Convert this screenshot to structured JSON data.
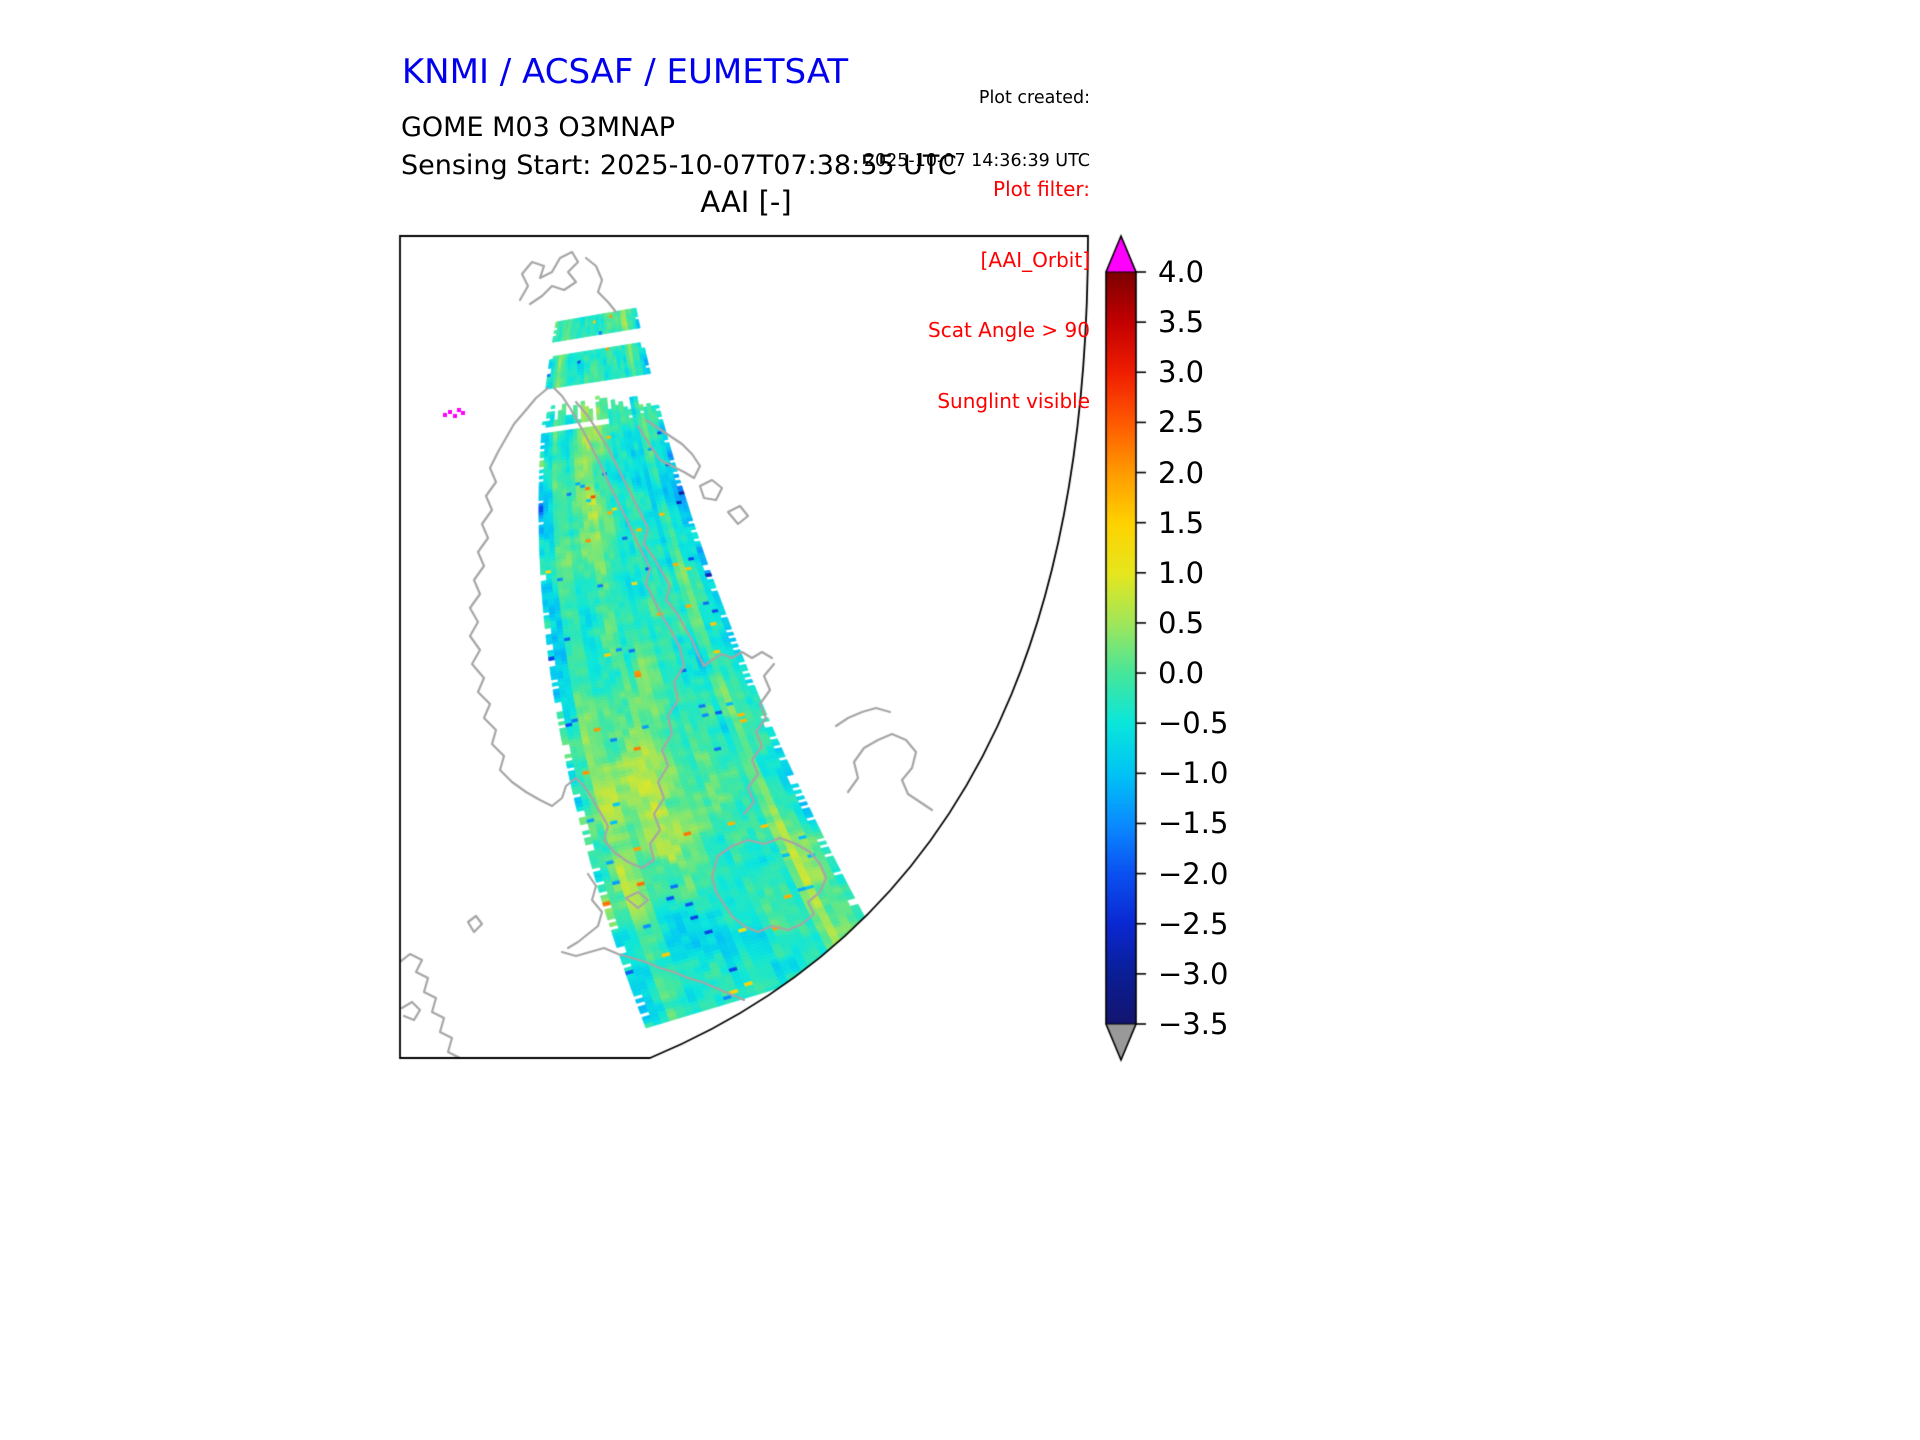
{
  "header": {
    "org_title": "KNMI / ACSAF / EUMETSAT",
    "created_label": "Plot created:",
    "created_timestamp": "2025-10-07 14:36:39 UTC"
  },
  "plot": {
    "instrument_title": "GOME M03 O3MNAP",
    "sensing_line": "Sensing Start: 2025-10-07T07:38:55 UTC",
    "axes_title": "AAI [-]"
  },
  "filter": {
    "label": "Plot filter:",
    "lines": [
      "[AAI_Orbit]",
      "Scat Angle > 90",
      "Sunglint visible"
    ]
  },
  "colors": {
    "title_blue": "#0000ee",
    "filter_red": "#ff0000",
    "coastline_gray": "#a6a6a6",
    "frame_black": "#000000"
  },
  "colorbar": {
    "tick_labels": [
      "4.0",
      "3.5",
      "3.0",
      "2.5",
      "2.0",
      "1.5",
      "1.0",
      "0.5",
      "0.0",
      "−0.5",
      "−1.0",
      "−1.5",
      "−2.0",
      "−2.5",
      "−3.0",
      "−3.5"
    ],
    "over_color": "#ff00ff",
    "under_color": "#999999",
    "stops": [
      {
        "v": -3.5,
        "c": "#14146e"
      },
      {
        "v": -3.0,
        "c": "#0a1e96"
      },
      {
        "v": -2.5,
        "c": "#0a28d2"
      },
      {
        "v": -2.0,
        "c": "#0a50f0"
      },
      {
        "v": -1.5,
        "c": "#0a8cff"
      },
      {
        "v": -1.0,
        "c": "#00c3f5"
      },
      {
        "v": -0.5,
        "c": "#0ae6dc"
      },
      {
        "v": 0.0,
        "c": "#46e69b"
      },
      {
        "v": 0.5,
        "c": "#a0e65a"
      },
      {
        "v": 1.0,
        "c": "#e6e61e"
      },
      {
        "v": 1.5,
        "c": "#ffd200"
      },
      {
        "v": 2.0,
        "c": "#ff9b00"
      },
      {
        "v": 2.5,
        "c": "#ff5a00"
      },
      {
        "v": 3.0,
        "c": "#f01e00"
      },
      {
        "v": 3.5,
        "c": "#c30000"
      },
      {
        "v": 4.0,
        "c": "#7d0000"
      }
    ]
  },
  "chart_data": {
    "type": "heatmap",
    "title": "AAI [-]",
    "subtitle": "GOME M03 O3MNAP — Sensing Start: 2025-10-07T07:38:55 UTC",
    "colorbar_ticks": [
      4.0,
      3.5,
      3.0,
      2.5,
      2.0,
      1.5,
      1.0,
      0.5,
      0.0,
      -0.5,
      -1.0,
      -1.5,
      -2.0,
      -2.5,
      -3.0,
      -3.5
    ],
    "value_range": [
      -3.5,
      4.0
    ],
    "over_range_color": "#ff00ff",
    "under_range_color": "#999999",
    "legend_position": "right",
    "projection": "polar-style map sector over Scandinavia / northern Europe with gray coastlines",
    "swath_summary": "Single north-to-south satellite swath tilted right toward the south; AAI values mostly between -1.5 and +1.5 (cyan/green/yellow mottling) with blue speckle near the northern end and swath edges, scattered orange/red pixels, a tiny magenta over-range cluster west of Norway, and two short detached swath segments at the northern end."
  }
}
